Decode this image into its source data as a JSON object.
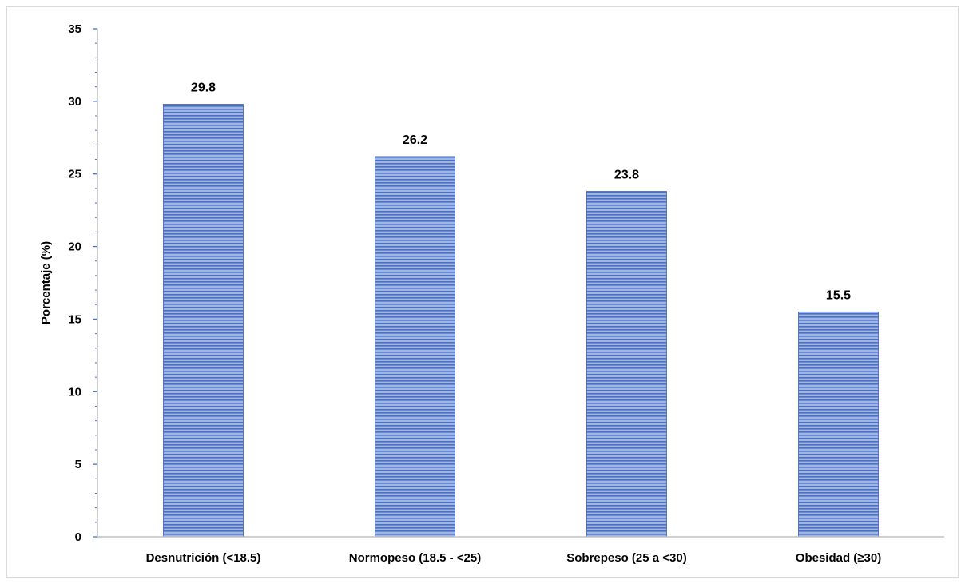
{
  "chart_data": {
    "type": "bar",
    "title": "",
    "xlabel": "",
    "ylabel": "Porcentaje (%)",
    "categories": [
      "Desnutrición (<18.5)",
      "Normopeso (18.5 - <25)",
      "Sobrepeso (25 a <30)",
      "Obesidad (≥30)"
    ],
    "values": [
      29.8,
      26.2,
      23.8,
      15.5
    ],
    "data_labels": [
      "29.8",
      "26.2",
      "23.8",
      "15.5"
    ],
    "ylim": [
      0,
      35
    ],
    "yticks": [
      0,
      5,
      10,
      15,
      20,
      25,
      30,
      35
    ],
    "ytick_labels": [
      "0",
      "5",
      "10",
      "15",
      "20",
      "25",
      "30",
      "35"
    ],
    "minor_ticks_per_major": 5,
    "grid": false,
    "legend": "none",
    "colors": {
      "bar_fill": "#7f9bd6",
      "bar_stripe": "#4a6fc1",
      "bar_edge": "#3c5fb0",
      "axis": "#bfbfbf",
      "tick_color": "#4472c4",
      "frame": "#d9d9d9"
    }
  }
}
